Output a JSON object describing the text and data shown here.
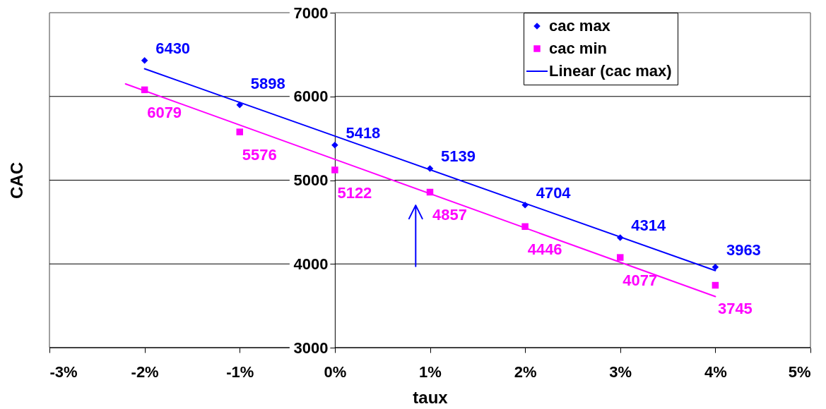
{
  "chart_data": {
    "type": "scatter",
    "xlabel": "taux",
    "ylabel": "CAC",
    "xlim": [
      -3,
      5
    ],
    "ylim": [
      3000,
      7000
    ],
    "xticks": [
      {
        "value": -3,
        "label": "-3%"
      },
      {
        "value": -2,
        "label": "-2%"
      },
      {
        "value": -1,
        "label": "-1%"
      },
      {
        "value": 0,
        "label": "0%"
      },
      {
        "value": 1,
        "label": "1%"
      },
      {
        "value": 2,
        "label": "2%"
      },
      {
        "value": 3,
        "label": "3%"
      },
      {
        "value": 4,
        "label": "4%"
      },
      {
        "value": 5,
        "label": "5%"
      }
    ],
    "yticks": [
      3000,
      4000,
      5000,
      6000,
      7000
    ],
    "grid": "y",
    "legend": "top right",
    "series": [
      {
        "name": "cac max",
        "marker": "diamond",
        "color": "#0000ff",
        "x": [
          -2,
          -1,
          0,
          1,
          2,
          3,
          4
        ],
        "values": [
          6430,
          5898,
          5418,
          5139,
          4704,
          4314,
          3963
        ],
        "value_labels": [
          "6430",
          "5898",
          "5418",
          "5139",
          "4704",
          "4314",
          "3963"
        ]
      },
      {
        "name": "cac min",
        "marker": "square",
        "color": "#ff00ff",
        "x": [
          -2,
          -1,
          0,
          1,
          2,
          3,
          4
        ],
        "values": [
          6079,
          5576,
          5122,
          4857,
          4446,
          4077,
          3745
        ],
        "value_labels": [
          "6079",
          "5576",
          "5122",
          "4857",
          "4446",
          "4077",
          "3745"
        ]
      },
      {
        "name": "Linear (cac max)",
        "type": "line",
        "color": "#0000ff",
        "x": [
          -2,
          4
        ],
        "values": [
          6330,
          3920
        ]
      },
      {
        "type": "line",
        "color": "#ff00ff",
        "x": [
          -2.2,
          4.0
        ],
        "values": [
          6150,
          3610
        ]
      },
      {
        "type": "line",
        "color": "#0000ff",
        "x": [
          0.85,
          0.85,
          0.78,
          0.85,
          0.92
        ],
        "values": [
          3970,
          4700,
          4540,
          4700,
          4540
        ]
      }
    ]
  }
}
